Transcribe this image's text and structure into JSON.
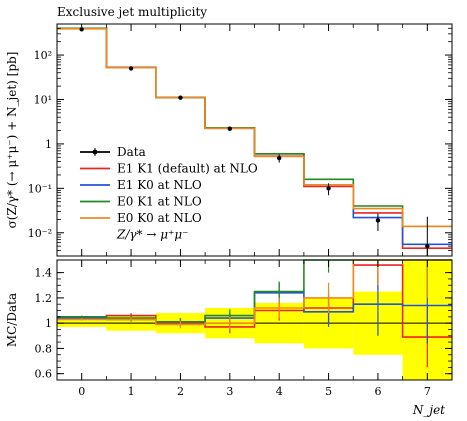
{
  "chart_data": [
    {
      "type": "line",
      "title": "Exclusive jet multiplicity",
      "ylabel": "σ(Z/γ* (→ μ⁺μ⁻) + N_jet) [pb]",
      "yscale": "log",
      "ylim": [
        0.003,
        500
      ],
      "xlim": [
        -0.5,
        7.5
      ],
      "y_ticks": [
        {
          "value": 0.01,
          "label": "10⁻²"
        },
        {
          "value": 0.1,
          "label": "10⁻¹"
        },
        {
          "value": 1,
          "label": "1"
        },
        {
          "value": 10,
          "label": "10¹"
        },
        {
          "value": 100,
          "label": "10²"
        }
      ],
      "bin_edges": [
        -0.5,
        0.5,
        1.5,
        2.5,
        3.5,
        4.5,
        5.5,
        6.5,
        7.5
      ],
      "data": {
        "name": "Data",
        "color": "#000000",
        "x": [
          0,
          1,
          2,
          3,
          4,
          5,
          6,
          7
        ],
        "y": [
          380,
          50,
          11,
          2.2,
          0.48,
          0.1,
          0.019,
          0.005
        ],
        "yerr_low": [
          5,
          1.5,
          0.6,
          0.25,
          0.1,
          0.03,
          0.008,
          0.003
        ],
        "yerr_high": [
          5,
          1.5,
          0.6,
          0.25,
          0.1,
          0.03,
          0.008,
          0.018
        ]
      },
      "series": [
        {
          "name": "E1 K1 (default) at NLO",
          "color": "#ee2222",
          "values": [
            395,
            53,
            11,
            2.3,
            0.53,
            0.11,
            0.028,
            0.0045
          ]
        },
        {
          "name": "E1 K0 at NLO",
          "color": "#2255dd",
          "values": [
            395,
            52,
            11,
            2.25,
            0.6,
            0.12,
            0.022,
            0.0055
          ]
        },
        {
          "name": "E0 K1 at NLO",
          "color": "#228822",
          "values": [
            400,
            52,
            11,
            2.3,
            0.6,
            0.16,
            0.04,
            0.014
          ]
        },
        {
          "name": "E0 K0 at NLO",
          "color": "#f08820",
          "values": [
            390,
            52,
            11,
            2.25,
            0.52,
            0.12,
            0.035,
            0.014
          ]
        }
      ],
      "legend": {
        "position": "bottom-left",
        "note": "Z/γ* → μ⁺μ⁻"
      }
    },
    {
      "type": "line",
      "ylabel": "MC/Data",
      "xlabel": "N_jet",
      "ylim": [
        0.55,
        1.5
      ],
      "y_ticks": [
        {
          "value": 0.6,
          "label": "0.6"
        },
        {
          "value": 0.8,
          "label": "0.8"
        },
        {
          "value": 1.0,
          "label": "1"
        },
        {
          "value": 1.2,
          "label": "1.2"
        },
        {
          "value": 1.4,
          "label": "1.4"
        }
      ],
      "x_ticks": [
        {
          "value": 0,
          "label": "0"
        },
        {
          "value": 1,
          "label": "1"
        },
        {
          "value": 2,
          "label": "2"
        },
        {
          "value": 3,
          "label": "3"
        },
        {
          "value": 4,
          "label": "4"
        },
        {
          "value": 5,
          "label": "5"
        },
        {
          "value": 6,
          "label": "6"
        },
        {
          "value": 7,
          "label": "7"
        }
      ],
      "bin_edges": [
        -0.5,
        0.5,
        1.5,
        2.5,
        3.5,
        4.5,
        5.5,
        6.5,
        7.5
      ],
      "data_band": {
        "color": "#ffff00",
        "low": [
          0.97,
          0.94,
          0.92,
          0.88,
          0.84,
          0.8,
          0.75,
          0.55
        ],
        "high": [
          1.03,
          1.06,
          1.08,
          1.12,
          1.16,
          1.2,
          1.25,
          1.5
        ]
      },
      "series": [
        {
          "name": "E1 K1 (default) at NLO",
          "color": "#ee2222",
          "values": [
            1.04,
            1.06,
            1.0,
            0.97,
            1.1,
            1.12,
            1.46,
            0.89
          ],
          "err": [
            0.01,
            0.02,
            0.03,
            0.05,
            0.08,
            0.12,
            0.2,
            0.24
          ]
        },
        {
          "name": "E1 K0 at NLO",
          "color": "#2255dd",
          "values": [
            1.04,
            1.03,
            1.01,
            1.04,
            1.24,
            1.09,
            1.15,
            1.14
          ],
          "err": [
            0.01,
            0.02,
            0.03,
            0.05,
            0.08,
            0.12,
            0.25,
            0.3
          ]
        },
        {
          "name": "E0 K1 at NLO",
          "color": "#228822",
          "values": [
            1.05,
            1.04,
            1.01,
            1.06,
            1.25,
            1.55,
            1.6,
            1.6
          ],
          "err": [
            0.01,
            0.02,
            0.03,
            0.05,
            0.08,
            0.15,
            0.3,
            0.4
          ]
        },
        {
          "name": "E0 K0 at NLO",
          "color": "#f08820",
          "values": [
            1.03,
            1.03,
            0.99,
            1.0,
            1.12,
            1.2,
            1.55,
            1.6
          ],
          "err": [
            0.01,
            0.02,
            0.03,
            0.05,
            0.08,
            0.12,
            0.25,
            0.4
          ]
        }
      ]
    }
  ]
}
